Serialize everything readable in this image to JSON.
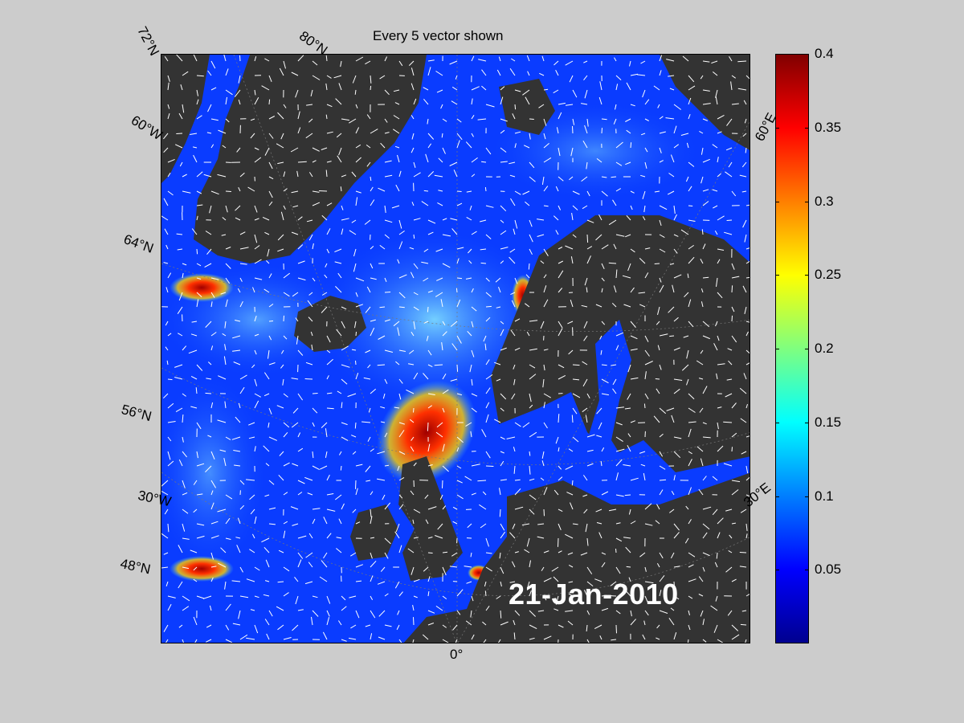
{
  "title": "Every 5 vector shown",
  "date": "21-Jan-2010",
  "grid_labels": {
    "lat_72": "72°N",
    "lat_80": "80°N",
    "lon_60w": "60°W",
    "lat_64": "64°N",
    "lat_56": "56°N",
    "lon_30w": "30°W",
    "lat_48": "48°N",
    "lon_0": "0°",
    "lon_30e": "30°E",
    "lon_60e": "60°E"
  },
  "colorbar": {
    "ticks": [
      "0.4",
      "0.35",
      "0.3",
      "0.25",
      "0.2",
      "0.15",
      "0.1",
      "0.05"
    ],
    "tick_values": [
      0.4,
      0.35,
      0.3,
      0.25,
      0.2,
      0.15,
      0.1,
      0.05
    ],
    "min": 0,
    "max": 0.4,
    "colormap": "jet"
  },
  "colors": {
    "land": "#333333",
    "ocean_low": "#1030ff",
    "ocean_mid": "#40c0ff",
    "ocean_high": "#ff2000",
    "vectors": "#ffffff",
    "background": "#cccccc"
  }
}
